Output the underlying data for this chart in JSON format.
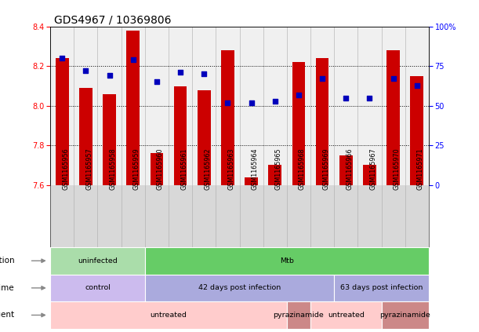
{
  "title": "GDS4967 / 10369806",
  "samples": [
    "GSM1165956",
    "GSM1165957",
    "GSM1165958",
    "GSM1165959",
    "GSM1165960",
    "GSM1165961",
    "GSM1165962",
    "GSM1165963",
    "GSM1165964",
    "GSM1165965",
    "GSM1165968",
    "GSM1165969",
    "GSM1165966",
    "GSM1165967",
    "GSM1165970",
    "GSM1165971"
  ],
  "transformed_counts": [
    8.24,
    8.09,
    8.06,
    8.38,
    7.76,
    8.1,
    8.08,
    8.28,
    7.64,
    7.7,
    8.22,
    8.24,
    7.75,
    7.7,
    8.28,
    8.15
  ],
  "percentile_ranks": [
    80,
    72,
    69,
    79,
    65,
    71,
    70,
    52,
    52,
    53,
    57,
    67,
    55,
    55,
    67,
    63
  ],
  "ylim_left": [
    7.6,
    8.4
  ],
  "ylim_right": [
    0,
    100
  ],
  "yticks_left": [
    7.6,
    7.8,
    8.0,
    8.2,
    8.4
  ],
  "yticks_right": [
    0,
    25,
    50,
    75,
    100
  ],
  "bar_color": "#cc0000",
  "dot_color": "#0000bb",
  "bar_bottom": 7.6,
  "infection_segments": [
    {
      "text": "uninfected",
      "start": 0,
      "end": 3,
      "color": "#aaddaa"
    },
    {
      "text": "Mtb",
      "start": 4,
      "end": 15,
      "color": "#66cc66"
    }
  ],
  "time_segments": [
    {
      "text": "control",
      "start": 0,
      "end": 3,
      "color": "#ccbbee"
    },
    {
      "text": "42 days post infection",
      "start": 4,
      "end": 11,
      "color": "#aaaadd"
    },
    {
      "text": "63 days post infection",
      "start": 12,
      "end": 15,
      "color": "#aaaadd"
    }
  ],
  "agent_segments": [
    {
      "text": "untreated",
      "start": 0,
      "end": 9,
      "color": "#ffcccc"
    },
    {
      "text": "pyrazinamide",
      "start": 10,
      "end": 10,
      "color": "#cc8888"
    },
    {
      "text": "untreated",
      "start": 11,
      "end": 13,
      "color": "#ffcccc"
    },
    {
      "text": "pyrazinamide",
      "start": 14,
      "end": 15,
      "color": "#cc8888"
    }
  ],
  "row_labels": [
    "infection",
    "time",
    "agent"
  ],
  "background_color": "#ffffff",
  "title_fontsize": 10,
  "tick_fontsize": 7,
  "bar_width": 0.55,
  "chart_bg": "#f0f0f0",
  "label_area_color": "#d8d8d8"
}
